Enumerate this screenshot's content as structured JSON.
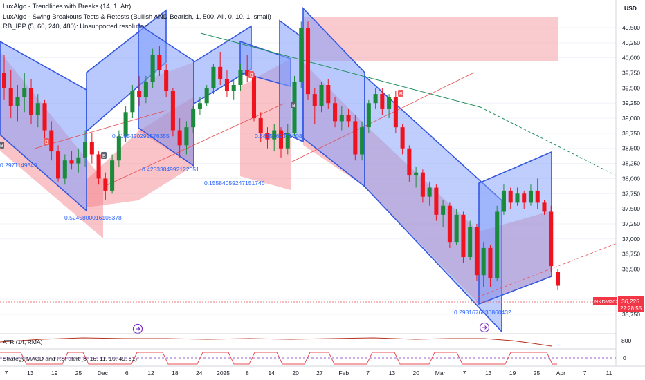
{
  "legend": {
    "line1": "LuxAlgo - Trendlines with Breaks (14, 1, Atr)",
    "line2": "LuxAlgo - Swing Breakouts Tests & Retests (Bullish AND Bearish, 1, 500, All, 0, 10, 1, small)",
    "line3": "RB_IPP (5, 60, 240, 480): Unsupported resolution"
  },
  "price_axis": {
    "currency": "USD",
    "ticks": [
      "40,500",
      "40,250",
      "40,000",
      "39,750",
      "39,500",
      "39,250",
      "39,000",
      "38,750",
      "38,500",
      "38,250",
      "38,000",
      "37,750",
      "37,500",
      "37,250",
      "37,000",
      "36,750",
      "36,500",
      "36,000",
      "35,750"
    ]
  },
  "price_tag": {
    "symbol": "NKDM2025",
    "price": "36,225",
    "countdown": "22:28:55"
  },
  "atr_pane": {
    "label": "ATR (14, RMA)",
    "tick": "800"
  },
  "strategy_pane": {
    "label": "Strategy MACD and RSI alert (8, 16, 11, 10, 49, 51)",
    "tick": "0"
  },
  "time_axis": {
    "labels": [
      "7",
      "13",
      "19",
      "25",
      "Dec",
      "6",
      "12",
      "18",
      "24",
      "2025",
      "8",
      "14",
      "20",
      "27",
      "Feb",
      "7",
      "13",
      "20",
      "Mar",
      "7",
      "13",
      "19",
      "25",
      "Apr",
      "7",
      "11"
    ]
  },
  "annotations": [
    "0.2971149349",
    "0.5245800016108378",
    "0.4185420291576355",
    "0.4253384992122051",
    "0.1558405924715174б",
    "0.5835069371008",
    "0.2931676830860432"
  ],
  "chart_data": {
    "type": "candlestick",
    "instrument": "NKDM2025",
    "currency": "USD",
    "ylim": [
      35750,
      40500
    ],
    "last_price": 36225,
    "candles": [
      {
        "o": 39750,
        "h": 40050,
        "l": 39300,
        "c": 39500
      },
      {
        "o": 39500,
        "h": 39800,
        "l": 39000,
        "c": 39200
      },
      {
        "o": 39200,
        "h": 39550,
        "l": 38950,
        "c": 39350
      },
      {
        "o": 39350,
        "h": 39750,
        "l": 39100,
        "c": 39500
      },
      {
        "o": 39500,
        "h": 39650,
        "l": 38900,
        "c": 39050
      },
      {
        "o": 39050,
        "h": 39400,
        "l": 38850,
        "c": 39250
      },
      {
        "o": 39250,
        "h": 39300,
        "l": 38600,
        "c": 38800
      },
      {
        "o": 38800,
        "h": 38950,
        "l": 38300,
        "c": 38450
      },
      {
        "o": 38450,
        "h": 38550,
        "l": 37950,
        "c": 38000
      },
      {
        "o": 38000,
        "h": 38400,
        "l": 37900,
        "c": 38300
      },
      {
        "o": 38300,
        "h": 38450,
        "l": 38150,
        "c": 38250
      },
      {
        "o": 38250,
        "h": 38500,
        "l": 38100,
        "c": 38350
      },
      {
        "o": 38350,
        "h": 38800,
        "l": 38200,
        "c": 38600
      },
      {
        "o": 38600,
        "h": 38750,
        "l": 38250,
        "c": 38400
      },
      {
        "o": 38400,
        "h": 38450,
        "l": 37900,
        "c": 38000
      },
      {
        "o": 38000,
        "h": 38100,
        "l": 37650,
        "c": 37800
      },
      {
        "o": 37800,
        "h": 38400,
        "l": 37750,
        "c": 38300
      },
      {
        "o": 38300,
        "h": 38800,
        "l": 38200,
        "c": 38700
      },
      {
        "o": 38700,
        "h": 39200,
        "l": 38600,
        "c": 39100
      },
      {
        "o": 39100,
        "h": 39550,
        "l": 39000,
        "c": 39450
      },
      {
        "o": 39450,
        "h": 39700,
        "l": 39200,
        "c": 39350
      },
      {
        "o": 39350,
        "h": 39700,
        "l": 39250,
        "c": 39600
      },
      {
        "o": 39600,
        "h": 40150,
        "l": 39500,
        "c": 40050
      },
      {
        "o": 40050,
        "h": 40200,
        "l": 39700,
        "c": 39800
      },
      {
        "o": 39800,
        "h": 39900,
        "l": 39350,
        "c": 39450
      },
      {
        "o": 39450,
        "h": 39500,
        "l": 38700,
        "c": 38800
      },
      {
        "o": 38800,
        "h": 39000,
        "l": 38350,
        "c": 38550
      },
      {
        "o": 38550,
        "h": 38950,
        "l": 38400,
        "c": 38850
      },
      {
        "o": 38850,
        "h": 39200,
        "l": 38750,
        "c": 39150
      },
      {
        "o": 39150,
        "h": 39350,
        "l": 39050,
        "c": 39250
      },
      {
        "o": 39250,
        "h": 39550,
        "l": 39200,
        "c": 39500
      },
      {
        "o": 39500,
        "h": 39900,
        "l": 39400,
        "c": 39850
      },
      {
        "o": 39850,
        "h": 40100,
        "l": 39550,
        "c": 39650
      },
      {
        "o": 39650,
        "h": 39800,
        "l": 39350,
        "c": 39450
      },
      {
        "o": 39450,
        "h": 39650,
        "l": 39300,
        "c": 39550
      },
      {
        "o": 39550,
        "h": 39900,
        "l": 39450,
        "c": 39800
      },
      {
        "o": 39800,
        "h": 40050,
        "l": 39600,
        "c": 39700
      },
      {
        "o": 39700,
        "h": 39750,
        "l": 38950,
        "c": 39000
      },
      {
        "o": 39000,
        "h": 39100,
        "l": 38600,
        "c": 38750
      },
      {
        "o": 38750,
        "h": 38850,
        "l": 38500,
        "c": 38650
      },
      {
        "o": 38650,
        "h": 38900,
        "l": 38450,
        "c": 38800
      },
      {
        "o": 38800,
        "h": 38850,
        "l": 38350,
        "c": 38500
      },
      {
        "o": 38500,
        "h": 38900,
        "l": 38400,
        "c": 38750
      },
      {
        "o": 38750,
        "h": 39700,
        "l": 38700,
        "c": 39600
      },
      {
        "o": 39600,
        "h": 40600,
        "l": 39500,
        "c": 40500
      },
      {
        "o": 40500,
        "h": 40600,
        "l": 39300,
        "c": 39400
      },
      {
        "o": 39400,
        "h": 39500,
        "l": 38900,
        "c": 39200
      },
      {
        "o": 39200,
        "h": 39600,
        "l": 39100,
        "c": 39550
      },
      {
        "o": 39550,
        "h": 39650,
        "l": 39150,
        "c": 39250
      },
      {
        "o": 39250,
        "h": 39350,
        "l": 38850,
        "c": 38950
      },
      {
        "o": 38950,
        "h": 39200,
        "l": 38800,
        "c": 39050
      },
      {
        "o": 39050,
        "h": 39150,
        "l": 38850,
        "c": 38950
      },
      {
        "o": 38950,
        "h": 39050,
        "l": 38300,
        "c": 38400
      },
      {
        "o": 38400,
        "h": 38950,
        "l": 38300,
        "c": 38850
      },
      {
        "o": 38850,
        "h": 39300,
        "l": 38750,
        "c": 39250
      },
      {
        "o": 39250,
        "h": 39500,
        "l": 39150,
        "c": 39400
      },
      {
        "o": 39400,
        "h": 39500,
        "l": 39050,
        "c": 39150
      },
      {
        "o": 39150,
        "h": 39400,
        "l": 39000,
        "c": 39350
      },
      {
        "o": 39350,
        "h": 39450,
        "l": 38750,
        "c": 38850
      },
      {
        "o": 38850,
        "h": 38900,
        "l": 38400,
        "c": 38500
      },
      {
        "o": 38500,
        "h": 38550,
        "l": 37950,
        "c": 38050
      },
      {
        "o": 38050,
        "h": 38200,
        "l": 37850,
        "c": 38100
      },
      {
        "o": 38100,
        "h": 38150,
        "l": 37600,
        "c": 37700
      },
      {
        "o": 37700,
        "h": 37950,
        "l": 37550,
        "c": 37850
      },
      {
        "o": 37850,
        "h": 37900,
        "l": 37300,
        "c": 37400
      },
      {
        "o": 37400,
        "h": 37650,
        "l": 37200,
        "c": 37550
      },
      {
        "o": 37550,
        "h": 37600,
        "l": 36850,
        "c": 36950
      },
      {
        "o": 36950,
        "h": 37500,
        "l": 36900,
        "c": 37400
      },
      {
        "o": 37400,
        "h": 37450,
        "l": 36600,
        "c": 36700
      },
      {
        "o": 36700,
        "h": 37300,
        "l": 36650,
        "c": 37200
      },
      {
        "o": 37200,
        "h": 37250,
        "l": 36300,
        "c": 36400
      },
      {
        "o": 36400,
        "h": 36950,
        "l": 36200,
        "c": 36850
      },
      {
        "o": 36850,
        "h": 36900,
        "l": 36200,
        "c": 36350
      },
      {
        "o": 36350,
        "h": 37550,
        "l": 36300,
        "c": 37450
      },
      {
        "o": 37450,
        "h": 37900,
        "l": 37400,
        "c": 37800
      },
      {
        "o": 37800,
        "h": 37850,
        "l": 37500,
        "c": 37600
      },
      {
        "o": 37600,
        "h": 37850,
        "l": 37550,
        "c": 37750
      },
      {
        "o": 37750,
        "h": 37800,
        "l": 37500,
        "c": 37600
      },
      {
        "o": 37600,
        "h": 37900,
        "l": 37550,
        "c": 37800
      },
      {
        "o": 37800,
        "h": 38000,
        "l": 37500,
        "c": 37600
      },
      {
        "o": 37600,
        "h": 37650,
        "l": 37400,
        "c": 37450
      },
      {
        "o": 37450,
        "h": 37550,
        "l": 36450,
        "c": 36550
      },
      {
        "o": 36450,
        "h": 36500,
        "l": 36150,
        "c": 36225
      }
    ]
  }
}
